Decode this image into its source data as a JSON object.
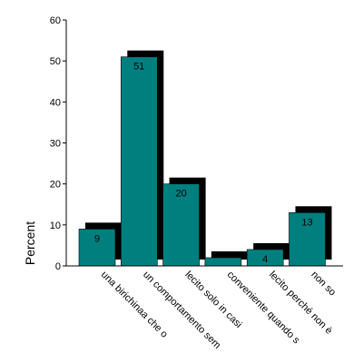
{
  "chart_data": {
    "type": "bar",
    "categories": [
      "una birichinaa che o",
      "un comportamento sem",
      "lecito solo in casi",
      "conveniente quando s",
      "lecito perché non è",
      "non so"
    ],
    "values": [
      9,
      51,
      20,
      2,
      4,
      13
    ],
    "data_labels": [
      "9",
      "51",
      "20",
      "",
      "4",
      "13"
    ],
    "ylabel": "Percent",
    "ylim": [
      0,
      60
    ],
    "yticks": [
      0,
      10,
      20,
      30,
      40,
      50,
      60
    ],
    "grid": false,
    "legend": "none",
    "bar_color": "#007f7f",
    "shadow_color": "#000000"
  }
}
